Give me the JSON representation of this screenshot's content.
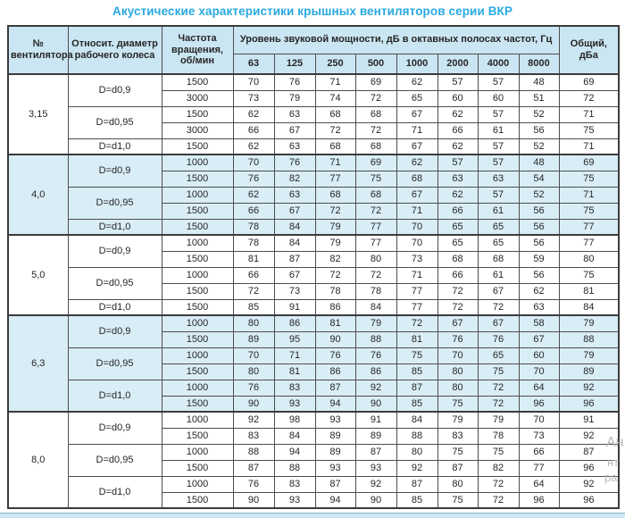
{
  "title": "Акустические характеристики крышных вентиляторов серии ВКР",
  "table": {
    "headers": {
      "fan_number": "№ вентилятора",
      "rel_diameter": "Относит. диаметр рабочего колеса",
      "rotation": "Частота вращения, об/мин",
      "spl_group": "Уровень звуковой мощности, дБ в октавных полосах частот, Гц",
      "frequencies": [
        "63",
        "125",
        "250",
        "500",
        "1000",
        "2000",
        "4000",
        "8000"
      ],
      "total": "Общий, дБа"
    },
    "sections": [
      {
        "fan": "3,15",
        "shade": false,
        "groups": [
          {
            "diameter": "D=d0,9",
            "rows": [
              {
                "rpm": "1500",
                "values": [
                  70,
                  76,
                  71,
                  69,
                  62,
                  57,
                  57,
                  48
                ],
                "total": 69
              },
              {
                "rpm": "3000",
                "values": [
                  73,
                  79,
                  74,
                  72,
                  65,
                  60,
                  60,
                  51
                ],
                "total": 72
              }
            ]
          },
          {
            "diameter": "D=d0,95",
            "rows": [
              {
                "rpm": "1500",
                "values": [
                  62,
                  63,
                  68,
                  68,
                  67,
                  62,
                  57,
                  52
                ],
                "total": 71
              },
              {
                "rpm": "3000",
                "values": [
                  66,
                  67,
                  72,
                  72,
                  71,
                  66,
                  61,
                  56
                ],
                "total": 75
              }
            ]
          },
          {
            "diameter": "D=d1,0",
            "rows": [
              {
                "rpm": "1500",
                "values": [
                  62,
                  63,
                  68,
                  68,
                  67,
                  62,
                  57,
                  52
                ],
                "total": 71
              }
            ]
          }
        ]
      },
      {
        "fan": "4,0",
        "shade": true,
        "groups": [
          {
            "diameter": "D=d0,9",
            "rows": [
              {
                "rpm": "1000",
                "values": [
                  70,
                  76,
                  71,
                  69,
                  62,
                  57,
                  57,
                  48
                ],
                "total": 69
              },
              {
                "rpm": "1500",
                "values": [
                  76,
                  82,
                  77,
                  75,
                  68,
                  63,
                  63,
                  54
                ],
                "total": 75
              }
            ]
          },
          {
            "diameter": "D=d0,95",
            "rows": [
              {
                "rpm": "1000",
                "values": [
                  62,
                  63,
                  68,
                  68,
                  67,
                  62,
                  57,
                  52
                ],
                "total": 71
              },
              {
                "rpm": "1500",
                "values": [
                  66,
                  67,
                  72,
                  72,
                  71,
                  66,
                  61,
                  56
                ],
                "total": 75
              }
            ]
          },
          {
            "diameter": "D=d1,0",
            "rows": [
              {
                "rpm": "1500",
                "values": [
                  78,
                  84,
                  79,
                  77,
                  70,
                  65,
                  65,
                  56
                ],
                "total": 77
              }
            ]
          }
        ]
      },
      {
        "fan": "5,0",
        "shade": false,
        "groups": [
          {
            "diameter": "D=d0,9",
            "rows": [
              {
                "rpm": "1000",
                "values": [
                  78,
                  84,
                  79,
                  77,
                  70,
                  65,
                  65,
                  56
                ],
                "total": 77
              },
              {
                "rpm": "1500",
                "values": [
                  81,
                  87,
                  82,
                  80,
                  73,
                  68,
                  68,
                  59
                ],
                "total": 80
              }
            ]
          },
          {
            "diameter": "D=d0,95",
            "rows": [
              {
                "rpm": "1000",
                "values": [
                  66,
                  67,
                  72,
                  72,
                  71,
                  66,
                  61,
                  56
                ],
                "total": 75
              },
              {
                "rpm": "1500",
                "values": [
                  72,
                  73,
                  78,
                  78,
                  77,
                  72,
                  67,
                  62
                ],
                "total": 81
              }
            ]
          },
          {
            "diameter": "D=d1,0",
            "rows": [
              {
                "rpm": "1500",
                "values": [
                  85,
                  91,
                  86,
                  84,
                  77,
                  72,
                  72,
                  63
                ],
                "total": 84
              }
            ]
          }
        ]
      },
      {
        "fan": "6,3",
        "shade": true,
        "groups": [
          {
            "diameter": "D=d0,9",
            "rows": [
              {
                "rpm": "1000",
                "values": [
                  80,
                  86,
                  81,
                  79,
                  72,
                  67,
                  67,
                  58
                ],
                "total": 79
              },
              {
                "rpm": "1500",
                "values": [
                  89,
                  95,
                  90,
                  88,
                  81,
                  76,
                  76,
                  67
                ],
                "total": 88
              }
            ]
          },
          {
            "diameter": "D=d0,95",
            "rows": [
              {
                "rpm": "1000",
                "values": [
                  70,
                  71,
                  76,
                  76,
                  75,
                  70,
                  65,
                  60
                ],
                "total": 79
              },
              {
                "rpm": "1500",
                "values": [
                  80,
                  81,
                  86,
                  86,
                  85,
                  80,
                  75,
                  70
                ],
                "total": 89
              }
            ]
          },
          {
            "diameter": "D=d1,0",
            "rows": [
              {
                "rpm": "1000",
                "values": [
                  76,
                  83,
                  87,
                  92,
                  87,
                  80,
                  72,
                  64
                ],
                "total": 92
              },
              {
                "rpm": "1500",
                "values": [
                  90,
                  93,
                  94,
                  90,
                  85,
                  75,
                  72,
                  96
                ],
                "total": 96
              }
            ]
          }
        ]
      },
      {
        "fan": "8,0",
        "shade": false,
        "groups": [
          {
            "diameter": "D=d0,9",
            "rows": [
              {
                "rpm": "1000",
                "values": [
                  92,
                  98,
                  93,
                  91,
                  84,
                  79,
                  79,
                  70
                ],
                "total": 91
              },
              {
                "rpm": "1500",
                "values": [
                  83,
                  84,
                  89,
                  89,
                  88,
                  83,
                  78,
                  73
                ],
                "total": 92
              }
            ]
          },
          {
            "diameter": "D=d0,95",
            "rows": [
              {
                "rpm": "1000",
                "values": [
                  88,
                  94,
                  89,
                  87,
                  80,
                  75,
                  75,
                  66
                ],
                "total": 87
              },
              {
                "rpm": "1500",
                "values": [
                  87,
                  88,
                  93,
                  93,
                  92,
                  87,
                  82,
                  77
                ],
                "total": 96
              }
            ]
          },
          {
            "diameter": "D=d1,0",
            "rows": [
              {
                "rpm": "1000",
                "values": [
                  76,
                  83,
                  87,
                  92,
                  87,
                  80,
                  72,
                  64
                ],
                "total": 92
              },
              {
                "rpm": "1500",
                "values": [
                  90,
                  93,
                  94,
                  90,
                  85,
                  75,
                  72,
                  96
                ],
                "total": 96
              }
            ]
          }
        ]
      }
    ]
  },
  "watermark": {
    "frag1": "Ан",
    "frag2": "нт",
    "frag3": "ра"
  },
  "colors": {
    "title": "#29a9e1",
    "header_bg": "#cbe6f3",
    "shade_bg": "#d9edf7",
    "border": "#4d4d4d",
    "text": "#262626"
  }
}
